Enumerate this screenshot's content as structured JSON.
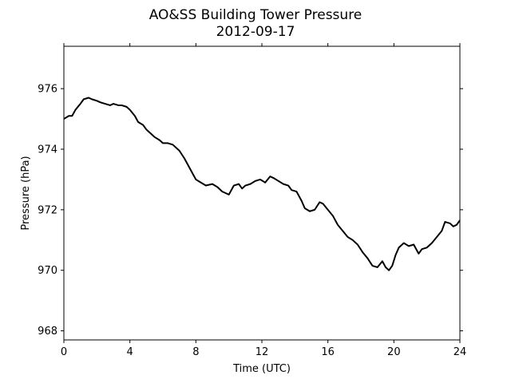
{
  "chart_data": {
    "type": "line",
    "title": "AO&SS Building Tower Pressure",
    "subtitle": "2012-09-17",
    "xlabel": "Time (UTC)",
    "ylabel": "Pressure (hPa)",
    "xlim": [
      0,
      24
    ],
    "ylim": [
      967.7,
      977.4
    ],
    "xticks": [
      0,
      4,
      8,
      12,
      16,
      20,
      24
    ],
    "xtick_labels": [
      "0",
      "4",
      "8",
      "12",
      "16",
      "20",
      "24"
    ],
    "yticks": [
      968,
      970,
      972,
      974,
      976
    ],
    "ytick_labels": [
      "968",
      "970",
      "972",
      "974",
      "976"
    ],
    "grid": false,
    "line_color": "#000000",
    "series": [
      {
        "x": [
          0,
          0.3,
          0.5,
          0.7,
          1.0,
          1.2,
          1.5,
          1.7,
          2.0,
          2.2,
          2.5,
          2.8,
          3.0,
          3.3,
          3.5,
          3.8,
          4.0,
          4.3,
          4.5,
          4.8,
          5.0,
          5.3,
          5.5,
          5.8,
          6.0,
          6.3,
          6.6,
          7.0,
          7.3,
          7.6,
          7.8,
          8.0,
          8.3,
          8.6,
          9.0,
          9.3,
          9.6,
          10.0,
          10.3,
          10.6,
          10.8,
          11.0,
          11.3,
          11.6,
          11.9,
          12.2,
          12.5,
          12.7,
          13.0,
          13.3,
          13.6,
          13.8,
          14.1,
          14.4,
          14.6,
          14.9,
          15.2,
          15.5,
          15.7,
          16.0,
          16.3,
          16.6,
          16.9,
          17.2,
          17.5,
          17.8,
          18.1,
          18.4,
          18.7,
          19.0,
          19.3,
          19.5,
          19.7,
          19.9,
          20.1,
          20.3,
          20.6,
          20.9,
          21.2,
          21.5,
          21.7,
          22.0,
          22.3,
          22.6,
          22.9,
          23.1,
          23.4,
          23.6,
          23.8,
          24.0
        ],
        "y": [
          975.0,
          975.1,
          975.1,
          975.3,
          975.5,
          975.65,
          975.7,
          975.65,
          975.6,
          975.55,
          975.5,
          975.45,
          975.5,
          975.45,
          975.45,
          975.4,
          975.3,
          975.1,
          974.9,
          974.8,
          974.65,
          974.5,
          974.4,
          974.3,
          974.2,
          974.2,
          974.15,
          973.95,
          973.7,
          973.4,
          973.2,
          973.0,
          972.9,
          972.8,
          972.85,
          972.75,
          972.6,
          972.5,
          972.8,
          972.85,
          972.7,
          972.8,
          972.85,
          972.95,
          973.0,
          972.9,
          973.1,
          973.05,
          972.95,
          972.85,
          972.8,
          972.65,
          972.6,
          972.3,
          972.05,
          971.95,
          972.0,
          972.25,
          972.2,
          972.0,
          971.8,
          971.5,
          971.3,
          971.1,
          971.0,
          970.85,
          970.6,
          970.4,
          970.15,
          970.1,
          970.3,
          970.1,
          970.0,
          970.15,
          970.5,
          970.75,
          970.9,
          970.8,
          970.85,
          970.55,
          970.7,
          970.75,
          970.9,
          971.1,
          971.3,
          971.6,
          971.55,
          971.45,
          971.5,
          971.65
        ]
      }
    ]
  }
}
